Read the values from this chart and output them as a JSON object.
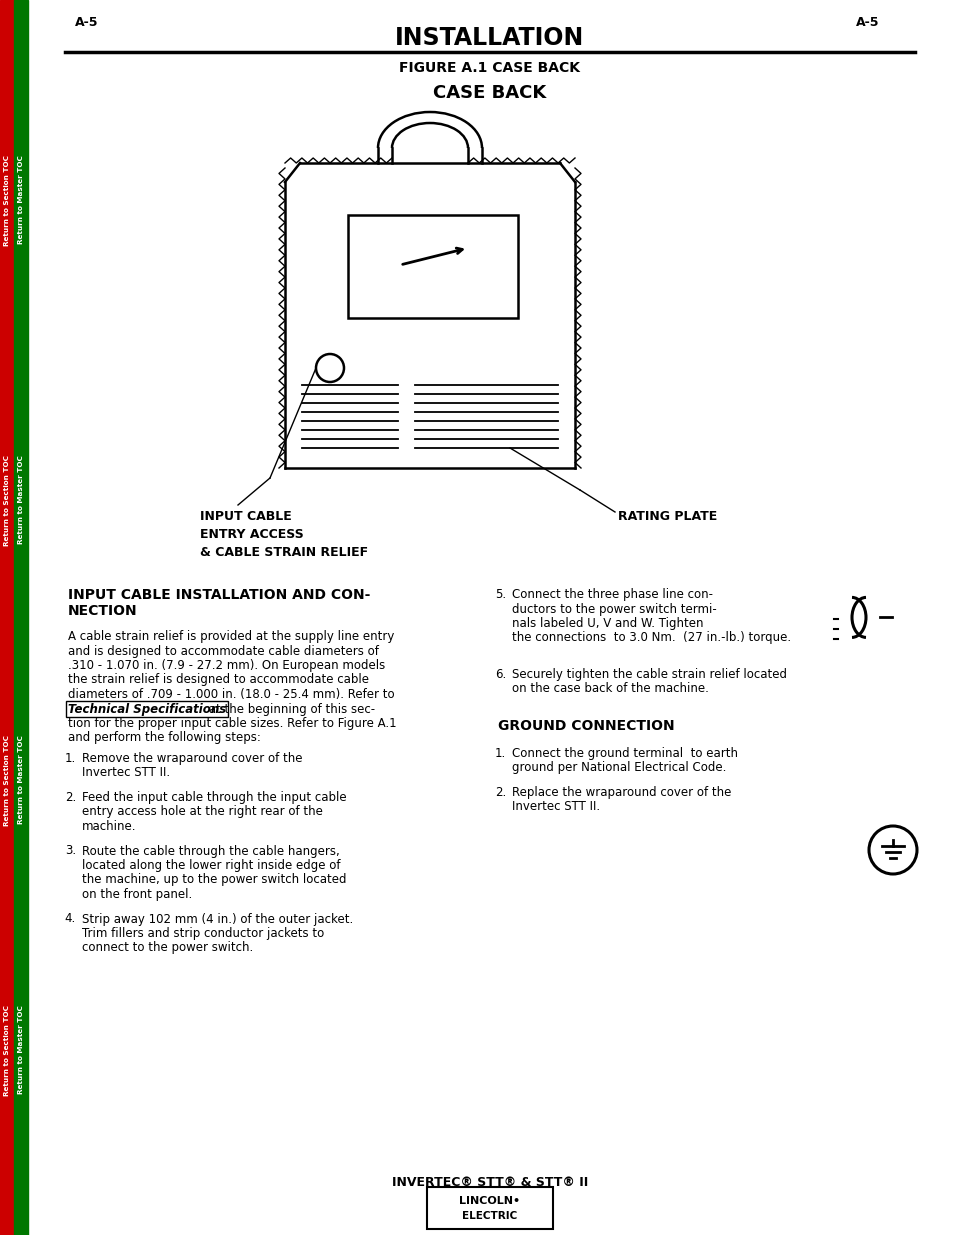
{
  "page_label": "A-5",
  "title": "INSTALLATION",
  "figure_title": "FIGURE A.1 CASE BACK",
  "case_back_label": "CASE BACK",
  "input_cable_label": "INPUT CABLE\nENTRY ACCESS\n& CABLE STRAIN RELIEF",
  "rating_plate_label": "RATING PLATE",
  "section_title_1a": "INPUT CABLE INSTALLATION AND CON-",
  "section_title_1b": "NECTION",
  "body_lines_1": [
    "A cable strain relief is provided at the supply line entry",
    "and is designed to accommodate cable diameters of",
    ".310 - 1.070 in. (7.9 - 27.2 mm). On European models",
    "the strain relief is designed to accommodate cable",
    "diameters of .709 - 1.000 in. (18.0 - 25.4 mm). Refer to"
  ],
  "link_text": "Technical Specifications",
  "body_after_link": " at the beginning of this sec-",
  "body_lines_2": [
    "tion for the proper input cable sizes. Refer to Figure A.1",
    "and perform the following steps:"
  ],
  "steps_left": [
    [
      "1.",
      "Remove the wraparound cover of the",
      "Invertec STT II."
    ],
    [
      "2.",
      "Feed the input cable through the input cable",
      "entry access hole at the right rear of the",
      "machine."
    ],
    [
      "3.",
      "Route the cable through the cable hangers,",
      "located along the lower right inside edge of",
      "the machine, up to the power switch located",
      "on the front panel."
    ],
    [
      "4.",
      "Strip away 102 mm (4 in.) of the outer jacket.",
      "Trim fillers and strip conductor jackets to",
      "connect to the power switch."
    ]
  ],
  "step5_lines": [
    "Connect the three phase line con-",
    "ductors to the power switch termi-",
    "nals labeled U, V and W. Tighten",
    "the connections  to 3.0 Nm.  (27 in.-lb.) torque."
  ],
  "step6_lines": [
    "Securely tighten the cable strain relief located",
    "on the case back of the machine."
  ],
  "section_title_2": "GROUND CONNECTION",
  "ground_steps": [
    [
      "1.",
      "Connect the ground terminal  to earth",
      "ground per National Electrical Code."
    ],
    [
      "2.",
      "Replace the wraparound cover of the",
      "Invertec STT II."
    ]
  ],
  "footer_text": "INVERTEC® STT® & STT® II",
  "logo_line1": "LINCOLN•",
  "logo_line2": "ELECTRIC",
  "sidebar_red_text": "Return to Section TOC",
  "sidebar_green_text": "Return to Master TOC",
  "bg_color": "#ffffff",
  "text_color": "#000000",
  "red_color": "#cc0000",
  "green_color": "#007700"
}
